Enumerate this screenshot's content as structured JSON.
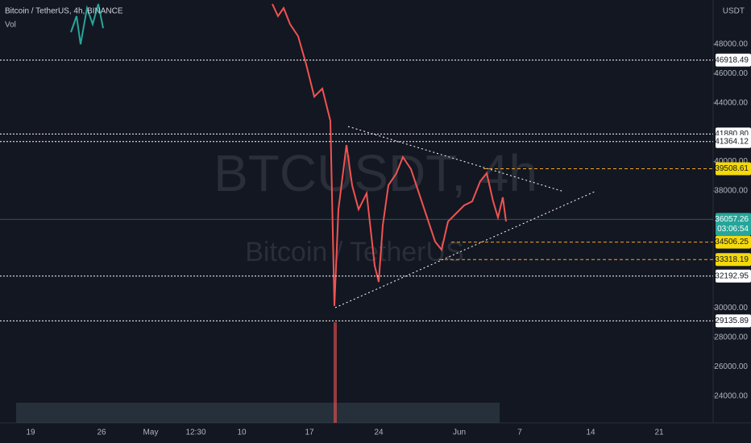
{
  "header": {
    "symbol": "Bitcoin / TetherUS, 4h, BINANCE",
    "volume": "Vol",
    "currency": "USDT"
  },
  "watermark": {
    "ticker": "BTCUSDT, 4h",
    "name": "Bitcoin / TetherUS"
  },
  "price_axis": {
    "ticks": [
      {
        "value": 48000,
        "label": "48000.00"
      },
      {
        "value": 46000,
        "label": "46000.00"
      },
      {
        "value": 44000,
        "label": "44000.00"
      },
      {
        "value": 40000,
        "label": "40000.00"
      },
      {
        "value": 38000,
        "label": "38000.00"
      },
      {
        "value": 30000,
        "label": "30000.00"
      },
      {
        "value": 28000,
        "label": "28000.00"
      },
      {
        "value": 26000,
        "label": "26000.00"
      },
      {
        "value": 24000,
        "label": "24000.00"
      }
    ]
  },
  "levels": [
    {
      "value": 46918.49,
      "label": "46918.49",
      "color": "#ffffff"
    },
    {
      "value": 41880.8,
      "label": "41880.80",
      "color": "#ffffff"
    },
    {
      "value": 41364.12,
      "label": "41364.12",
      "color": "#ffffff"
    },
    {
      "value": 39508.61,
      "label": "39508.61",
      "color": "#f5d90a"
    },
    {
      "value": 34506.25,
      "label": "34506.25",
      "color": "#f5d90a"
    },
    {
      "value": 33318.19,
      "label": "33318.19",
      "color": "#f5d90a"
    },
    {
      "value": 32192.95,
      "label": "32192.95",
      "color": "#ffffff"
    },
    {
      "value": 29135.89,
      "label": "29135.89",
      "color": "#ffffff"
    }
  ],
  "last_price": {
    "value": 36057.26,
    "label": "36057.26",
    "countdown": "03:06:54"
  },
  "time_axis": [
    "19",
    "26",
    "May",
    "12:30",
    "10",
    "17",
    "24",
    "Jun",
    "7",
    "14",
    "21"
  ]
}
